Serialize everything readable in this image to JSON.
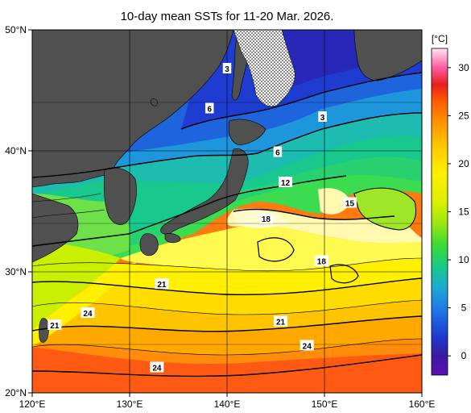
{
  "title": "10-day mean SSTs for 11-20 Mar. 2026.",
  "axes": {
    "lon_labels": [
      "120°E",
      "130°E",
      "140°E",
      "150°E",
      "160°E"
    ],
    "lat_labels": [
      "50°N",
      "40°N",
      "30°N",
      "20°N"
    ],
    "lon_values": [
      120,
      130,
      140,
      150,
      160
    ],
    "lat_values": [
      50,
      40,
      30,
      20
    ],
    "lon_range": [
      120,
      160
    ],
    "lat_range": [
      20,
      50
    ]
  },
  "colorbar": {
    "unit": "[°C]",
    "ticks": [
      "30",
      "25",
      "20",
      "15",
      "10",
      "5",
      "0"
    ],
    "tick_values": [
      30,
      25,
      20,
      15,
      10,
      5,
      0
    ],
    "range": [
      -2,
      32
    ],
    "colors": [
      "#3a1aa0",
      "#1e3cd0",
      "#1e78e6",
      "#1eaad2",
      "#18c88c",
      "#3cdc32",
      "#96e614",
      "#dcf000",
      "#fff000",
      "#ffc800",
      "#ff9600",
      "#ff5a00",
      "#e61e1e",
      "#ff5aa0",
      "#ffaadc",
      "#ffe6f5"
    ]
  },
  "contour_labels": [
    {
      "text": "3",
      "lon": 140.0,
      "lat": 46.8
    },
    {
      "text": "6",
      "lon": 138.2,
      "lat": 43.5
    },
    {
      "text": "3",
      "lon": 149.8,
      "lat": 42.8
    },
    {
      "text": "6",
      "lon": 145.2,
      "lat": 39.9
    },
    {
      "text": "12",
      "lon": 146.0,
      "lat": 37.4
    },
    {
      "text": "15",
      "lon": 152.6,
      "lat": 35.7
    },
    {
      "text": "18",
      "lon": 144.0,
      "lat": 34.4
    },
    {
      "text": "18",
      "lon": 149.7,
      "lat": 30.9
    },
    {
      "text": "21",
      "lon": 133.3,
      "lat": 29.0
    },
    {
      "text": "21",
      "lon": 145.5,
      "lat": 25.9
    },
    {
      "text": "24",
      "lon": 125.7,
      "lat": 26.6
    },
    {
      "text": "21",
      "lon": 122.3,
      "lat": 25.6
    },
    {
      "text": "24",
      "lon": 148.2,
      "lat": 23.9
    },
    {
      "text": "24",
      "lon": 132.8,
      "lat": 22.1
    }
  ],
  "legend_colors": {
    "land": "#505050",
    "sea_ice": "#ffffff"
  }
}
